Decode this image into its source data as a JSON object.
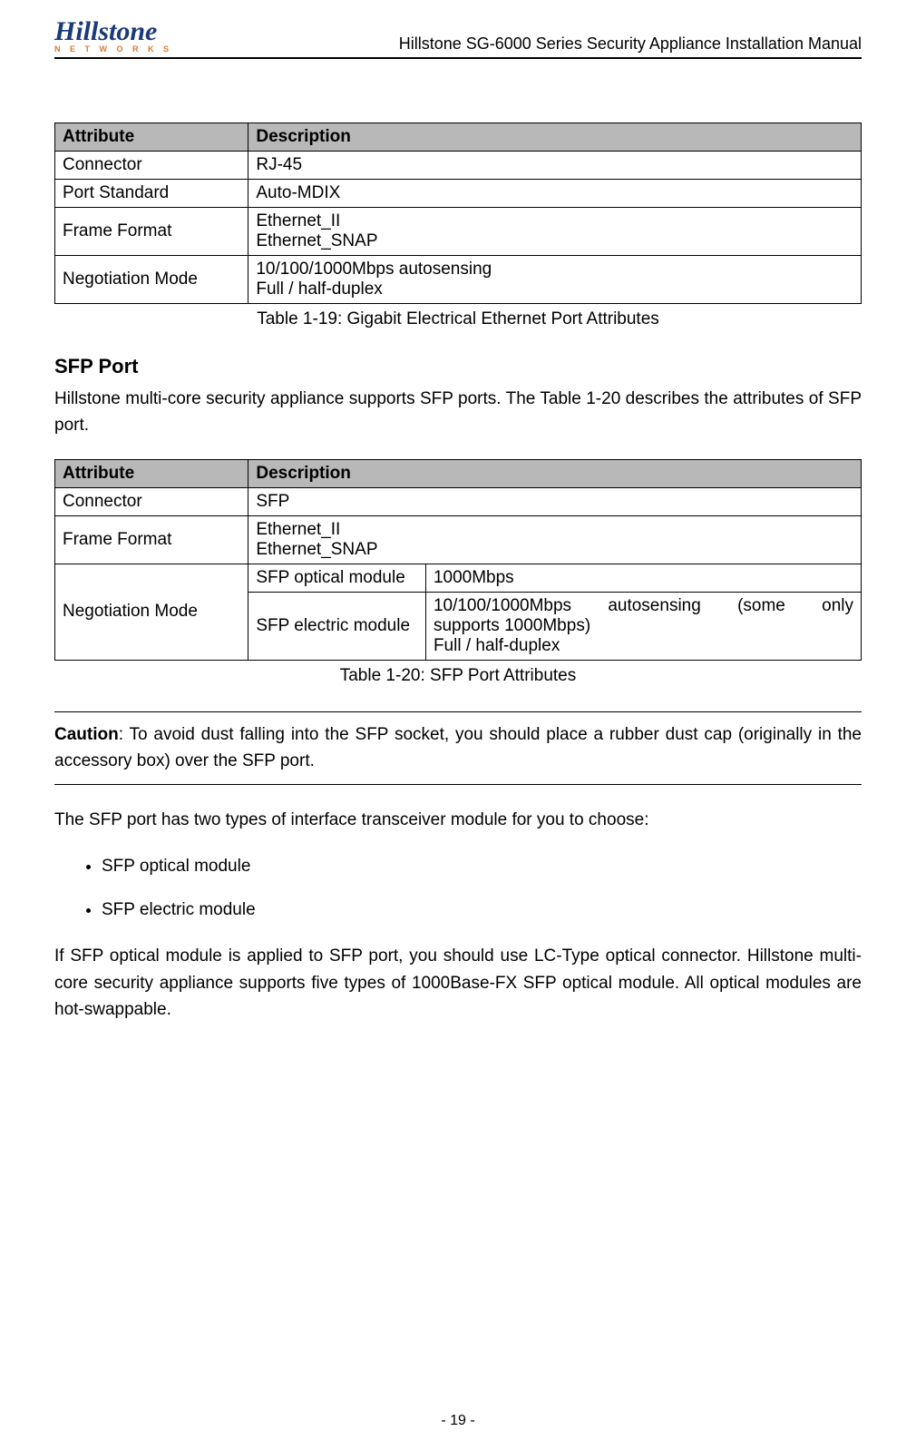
{
  "header": {
    "logo_main": "Hillstone",
    "logo_sub": "N E T W O R K S",
    "doc_title": "Hillstone SG-6000 Series Security Appliance Installation Manual"
  },
  "table1": {
    "columns": [
      "Attribute",
      "Description"
    ],
    "rows": [
      [
        "Connector",
        "RJ-45"
      ],
      [
        "Port Standard",
        "Auto-MDIX"
      ],
      [
        "Frame Format",
        "Ethernet_II\nEthernet_SNAP"
      ],
      [
        "Negotiation Mode",
        "10/100/1000Mbps autosensing\nFull / half-duplex"
      ]
    ],
    "caption": "Table 1-19: Gigabit Electrical Ethernet Port Attributes"
  },
  "section1": {
    "heading": "SFP Port",
    "para": "Hillstone multi-core security appliance supports SFP ports. The Table 1-20 describes the attributes of SFP port."
  },
  "table2": {
    "columns": [
      "Attribute",
      "Description"
    ],
    "row1": [
      "Connector",
      "SFP"
    ],
    "row2": [
      "Frame Format",
      "Ethernet_II\nEthernet_SNAP"
    ],
    "row3_attr": "Negotiation Mode",
    "row3a": [
      "SFP optical module",
      "1000Mbps"
    ],
    "row3b_mod": "SFP electric module",
    "row3b_desc_line1": "10/100/1000Mbps autosensing (some only",
    "row3b_desc_line2": "supports 1000Mbps)",
    "row3b_desc_line3": "Full / half-duplex",
    "caption": "Table 1-20: SFP Port Attributes"
  },
  "caution": {
    "label": "Caution",
    "text": ": To avoid dust falling into the SFP socket, you should place a rubber dust cap (originally in the accessory box) over the SFP port."
  },
  "para2": "The SFP port has two types of interface transceiver module for you to choose:",
  "bullets": [
    "SFP optical module",
    "SFP electric module"
  ],
  "para3": "If SFP optical module is applied to SFP port, you should use LC-Type optical connector. Hillstone multi-core security appliance supports five types of 1000Base-FX SFP optical module. All optical modules are hot-swappable.",
  "page_number": "- 19 -"
}
